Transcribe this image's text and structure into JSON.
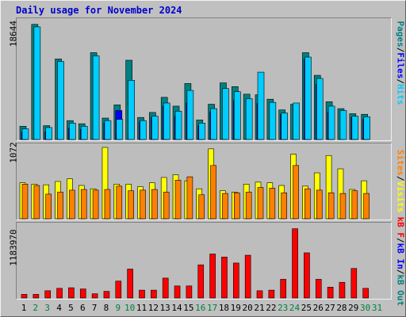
{
  "title": "Daily usage for November 2024",
  "colors": {
    "hits": "#00CCFF",
    "files": "#0000FF",
    "pages": "#008080",
    "visits": "#FFFF00",
    "sites": "#FF8000",
    "kbin": "#0000FF",
    "kbout": "#008080",
    "kbf": "#FF0000",
    "weekend_label": "#008040",
    "weekday_label": "#000000"
  },
  "panels": {
    "hits": {
      "ymax_label": "18644",
      "legend": [
        "Pages",
        "/",
        "Files",
        "/",
        "Hits"
      ]
    },
    "visits": {
      "ymax_label": "1072",
      "legend": [
        "Sites",
        "/",
        "Visits"
      ]
    },
    "kbytes": {
      "ymax_label": "1183970",
      "legend": [
        "kB F",
        "/",
        "kB In",
        "/",
        "kB Out"
      ]
    }
  },
  "chart_data": [
    {
      "type": "bar",
      "panel": "hits",
      "categories": [
        "1",
        "2",
        "3",
        "4",
        "5",
        "6",
        "7",
        "8",
        "9",
        "10",
        "11",
        "12",
        "13",
        "14",
        "15",
        "16",
        "17",
        "18",
        "19",
        "20",
        "21",
        "22",
        "23",
        "24",
        "25",
        "26",
        "27",
        "28",
        "29",
        "30",
        "31"
      ],
      "weekend_days": [
        "2",
        "3",
        "9",
        "10",
        "16",
        "17",
        "23",
        "24",
        "30",
        "31"
      ],
      "ylim": [
        0,
        18644
      ],
      "series": [
        {
          "name": "Pages",
          "values": [
            2100,
            18300,
            2200,
            12800,
            3000,
            2500,
            13800,
            3400,
            5500,
            12600,
            3500,
            4300,
            6700,
            5300,
            8900,
            3100,
            5600,
            9000,
            8400,
            7200,
            7100,
            6400,
            4700,
            5600,
            13800,
            10200,
            6000,
            4900,
            4100,
            4000,
            0
          ]
        },
        {
          "name": "Files",
          "values": [
            1200,
            0,
            1200,
            0,
            1800,
            1600,
            0,
            2600,
            4600,
            0,
            2800,
            3500,
            5300,
            3700,
            5800,
            2200,
            4400,
            0,
            6200,
            0,
            5700,
            0,
            4000,
            0,
            12800,
            8800,
            4300,
            0,
            3500,
            3200,
            0
          ]
        },
        {
          "name": "Hits",
          "values": [
            1700,
            17900,
            1900,
            12400,
            2600,
            2100,
            13300,
            3000,
            3200,
            9400,
            3000,
            3700,
            5800,
            4500,
            7800,
            2600,
            4900,
            8100,
            7600,
            6500,
            10700,
            5900,
            4200,
            5800,
            13100,
            9700,
            5300,
            4600,
            3700,
            3600,
            0
          ]
        }
      ]
    },
    {
      "type": "bar",
      "panel": "visits",
      "categories": [
        "1",
        "2",
        "3",
        "4",
        "5",
        "6",
        "7",
        "8",
        "9",
        "10",
        "11",
        "12",
        "13",
        "14",
        "15",
        "16",
        "17",
        "18",
        "19",
        "20",
        "21",
        "22",
        "23",
        "24",
        "25",
        "26",
        "27",
        "28",
        "29",
        "30",
        "31"
      ],
      "ylim": [
        0,
        1072
      ],
      "series": [
        {
          "name": "Visits",
          "values": [
            540,
            520,
            510,
            560,
            600,
            500,
            450,
            1072,
            520,
            520,
            480,
            540,
            620,
            660,
            570,
            450,
            1050,
            420,
            400,
            520,
            550,
            540,
            500,
            970,
            490,
            690,
            950,
            750,
            440,
            570,
            0
          ]
        },
        {
          "name": "Sites",
          "values": [
            520,
            500,
            370,
            400,
            430,
            440,
            430,
            440,
            490,
            420,
            430,
            440,
            400,
            580,
            630,
            360,
            800,
            380,
            390,
            400,
            470,
            460,
            390,
            800,
            450,
            430,
            390,
            380,
            420,
            380,
            0
          ]
        }
      ]
    },
    {
      "type": "bar",
      "panel": "kbytes",
      "categories": [
        "1",
        "2",
        "3",
        "4",
        "5",
        "6",
        "7",
        "8",
        "9",
        "10",
        "11",
        "12",
        "13",
        "14",
        "15",
        "16",
        "17",
        "18",
        "19",
        "20",
        "21",
        "22",
        "23",
        "24",
        "25",
        "26",
        "27",
        "28",
        "29",
        "30",
        "31"
      ],
      "ylim": [
        0,
        1183970
      ],
      "series": [
        {
          "name": "kB F",
          "values": [
            60000,
            60000,
            120000,
            160000,
            170000,
            150000,
            70000,
            110000,
            280000,
            480000,
            130000,
            130000,
            330000,
            200000,
            200000,
            550000,
            730000,
            680000,
            580000,
            710000,
            120000,
            130000,
            310000,
            1150000,
            750000,
            310000,
            180000,
            260000,
            490000,
            160000,
            0
          ]
        },
        {
          "name": "kB In",
          "values": [
            0,
            0,
            0,
            0,
            0,
            0,
            0,
            0,
            0,
            0,
            0,
            0,
            0,
            0,
            0,
            0,
            0,
            0,
            0,
            0,
            0,
            0,
            0,
            0,
            0,
            0,
            0,
            0,
            0,
            0,
            0
          ]
        },
        {
          "name": "kB Out",
          "values": [
            0,
            0,
            0,
            0,
            0,
            0,
            0,
            0,
            0,
            0,
            0,
            0,
            0,
            0,
            0,
            0,
            0,
            0,
            0,
            0,
            0,
            0,
            0,
            0,
            0,
            0,
            0,
            0,
            0,
            0,
            0
          ]
        }
      ]
    }
  ]
}
